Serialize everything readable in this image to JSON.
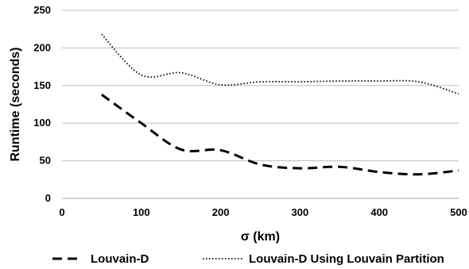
{
  "chart_data": {
    "type": "line",
    "title": "",
    "xlabel": "σ (km)",
    "ylabel": "Runtime (seconds)",
    "xlim": [
      0,
      500
    ],
    "ylim": [
      0,
      250
    ],
    "x_ticks": [
      0,
      100,
      200,
      300,
      400,
      500
    ],
    "y_ticks": [
      0,
      50,
      100,
      150,
      200,
      250
    ],
    "grid": "horizontal",
    "legend_position": "bottom",
    "series": [
      {
        "name": "Louvain-D",
        "style": "dashed",
        "color": "#000000",
        "x": [
          50,
          100,
          150,
          200,
          250,
          300,
          350,
          400,
          450,
          500
        ],
        "y": [
          138,
          100,
          65,
          64,
          45,
          40,
          42,
          35,
          32,
          37
        ]
      },
      {
        "name": "Louvain-D Using Louvain Partition",
        "style": "dotted",
        "color": "#000000",
        "x": [
          50,
          100,
          150,
          200,
          250,
          300,
          350,
          400,
          450,
          500
        ],
        "y": [
          218,
          164,
          167,
          151,
          155,
          155,
          156,
          156,
          155,
          139
        ]
      }
    ]
  }
}
